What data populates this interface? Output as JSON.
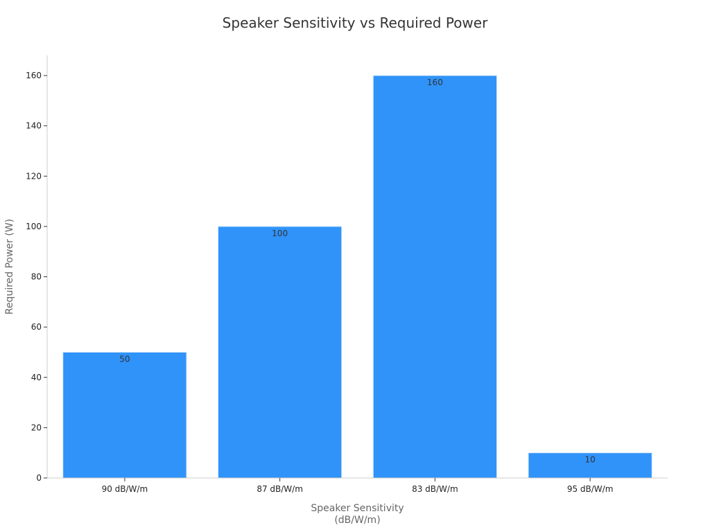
{
  "chart_data": {
    "type": "bar",
    "title": "Speaker Sensitivity vs Required Power",
    "xlabel": "Speaker Sensitivity\n(dB/W/m)",
    "ylabel": "Required Power (W)",
    "categories": [
      "90 dB/W/m",
      "87 dB/W/m",
      "83 dB/W/m",
      "95 dB/W/m"
    ],
    "values": [
      50,
      100,
      160,
      10
    ],
    "ylim": [
      0,
      168
    ],
    "yticks": [
      0,
      20,
      40,
      60,
      80,
      100,
      120,
      140,
      160
    ],
    "grid": false,
    "legend": "none",
    "bar_color": "#2f93fa",
    "bar_edge_color": "#d6e9fb"
  }
}
